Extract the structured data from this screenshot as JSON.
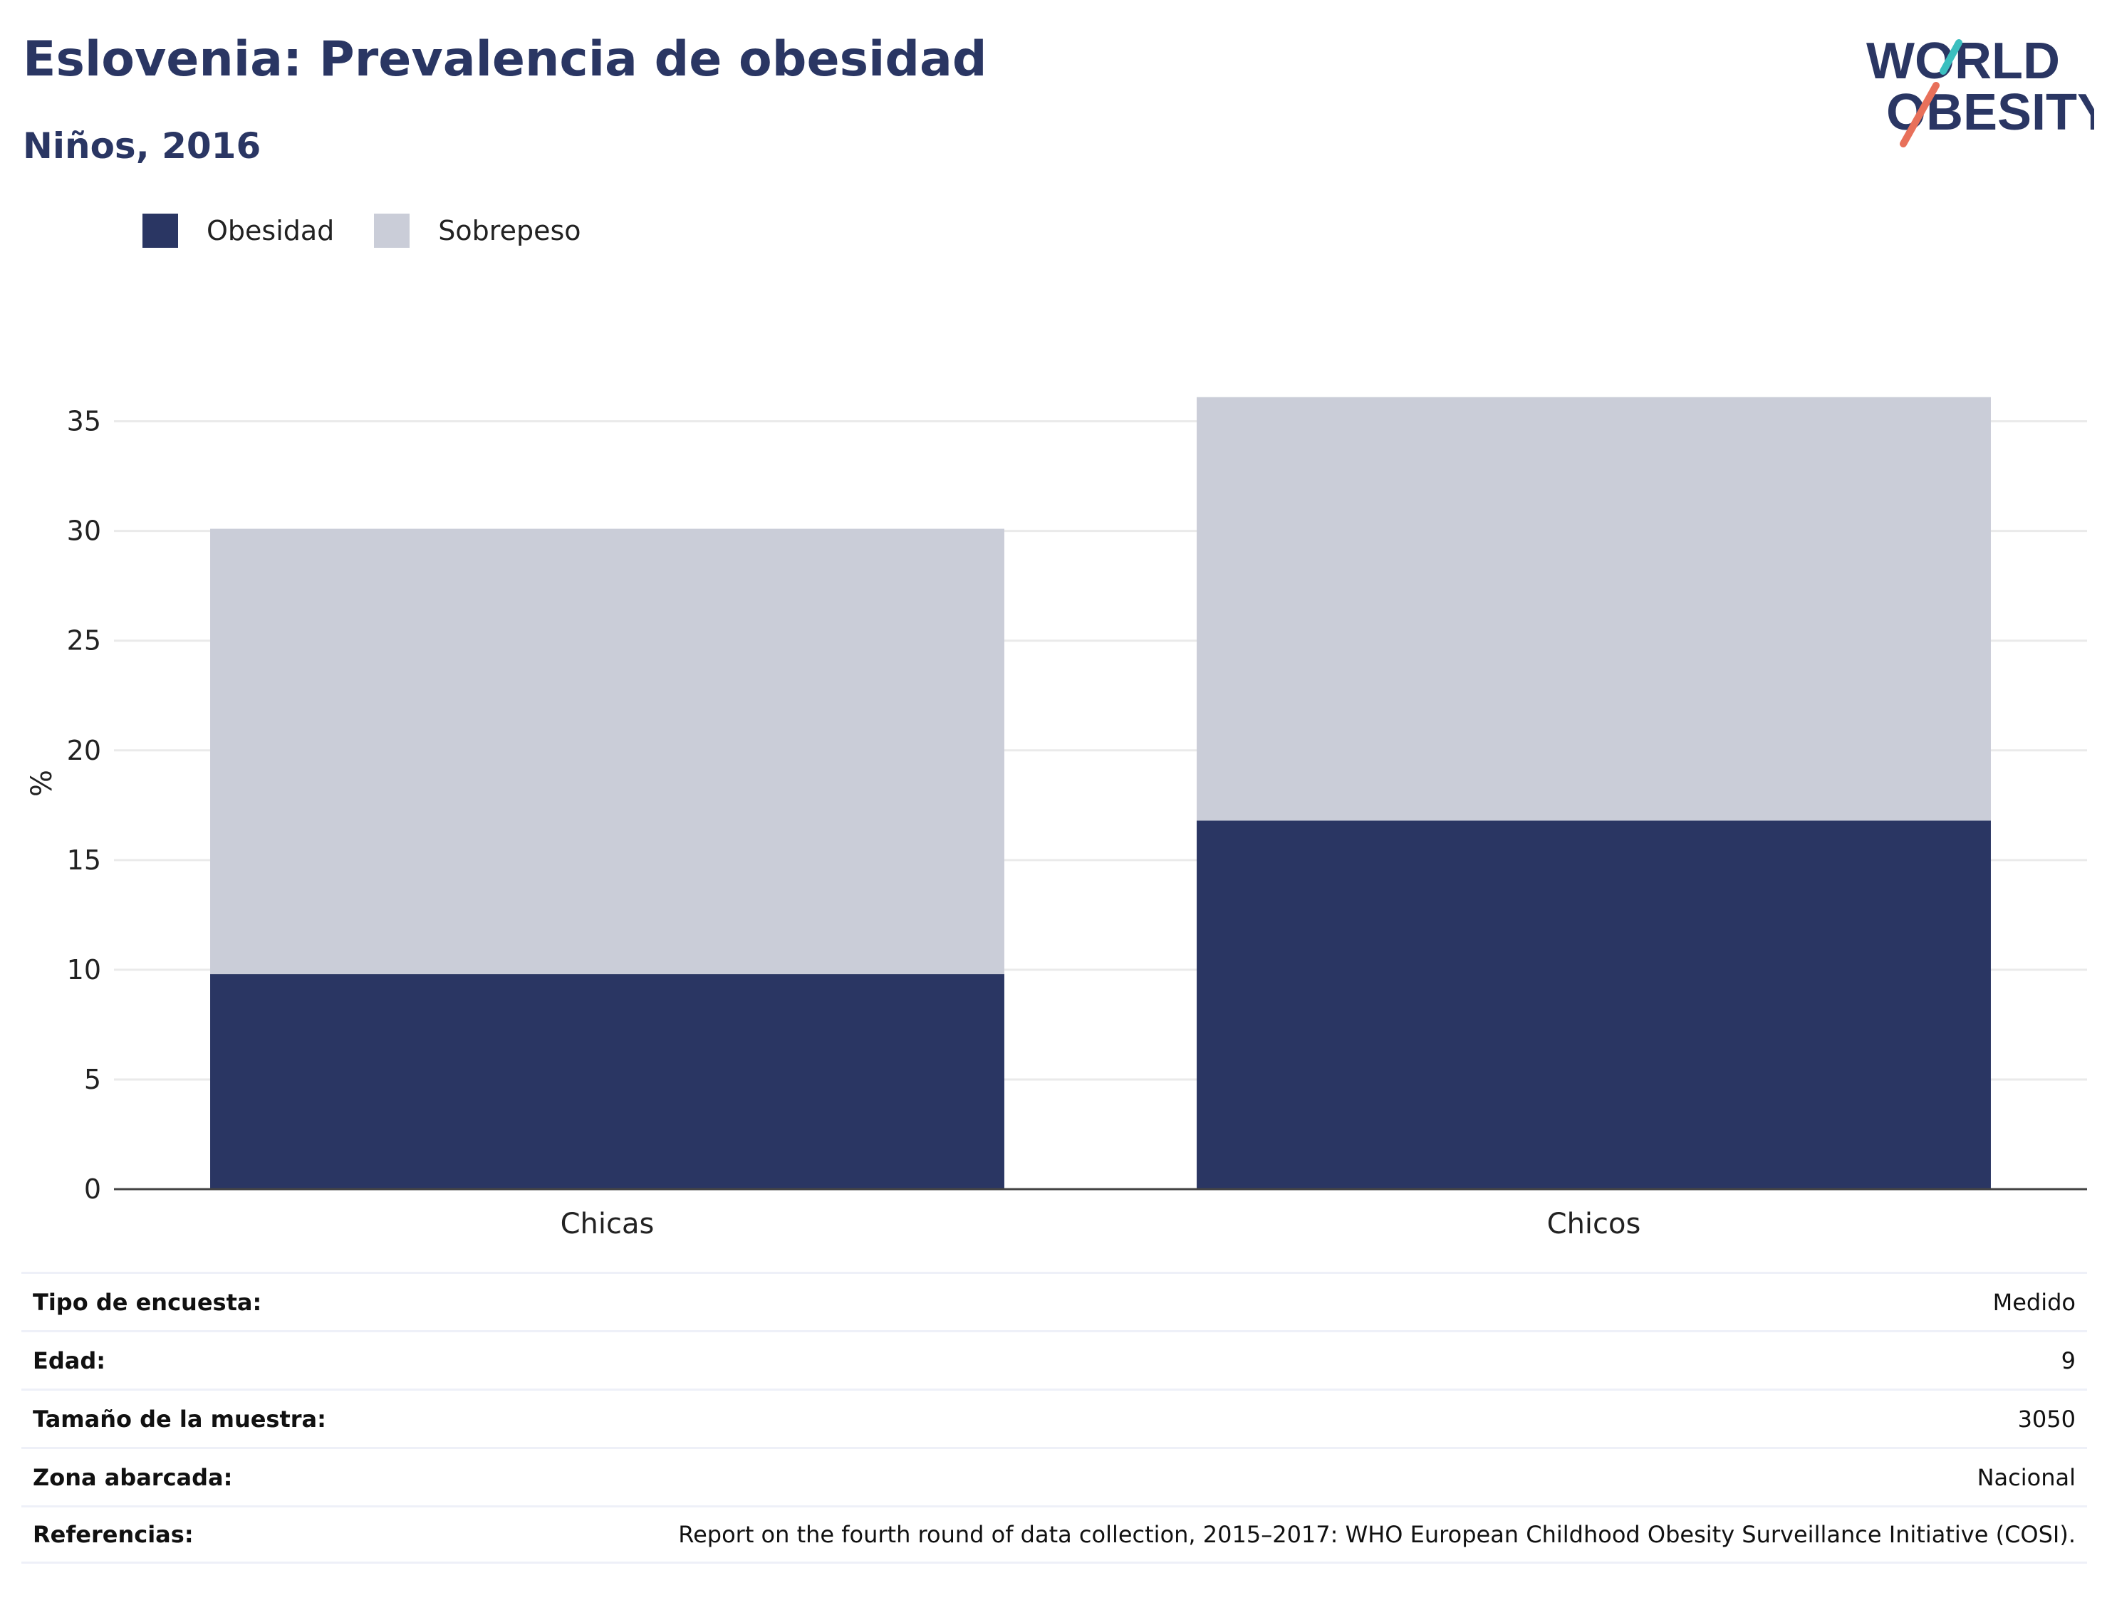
{
  "title": "Eslovenia: Prevalencia de obesidad",
  "subtitle": "Niños, 2016",
  "logo": {
    "line1": "WORLD",
    "line2": "OBESITY",
    "accent_teal": "#3bbfbf",
    "accent_coral": "#e8705a"
  },
  "colors": {
    "obesidad": "#2a3663",
    "sobrepeso": "#cacdd8",
    "text": "#2a3663"
  },
  "chart_data": {
    "type": "bar",
    "stacked": true,
    "categories": [
      "Chicas",
      "Chicos"
    ],
    "series": [
      {
        "name": "Obesidad",
        "values": [
          9.8,
          16.8
        ],
        "color": "#2a3663"
      },
      {
        "name": "Sobrepeso",
        "values": [
          20.3,
          19.3
        ],
        "color": "#cacdd8"
      }
    ],
    "ylabel": "%",
    "ylim": [
      0,
      37
    ],
    "yticks": [
      0,
      5,
      10,
      15,
      20,
      25,
      30,
      35
    ],
    "grid": true,
    "legend_position": "top-left"
  },
  "info": [
    {
      "key": "Tipo de encuesta:",
      "value": "Medido"
    },
    {
      "key": "Edad:",
      "value": "9"
    },
    {
      "key": "Tamaño de la muestra:",
      "value": "3050"
    },
    {
      "key": "Zona abarcada:",
      "value": "Nacional"
    },
    {
      "key": "Referencias:",
      "value": "Report on the fourth round of data collection, 2015–2017: WHO European Childhood Obesity Surveillance Initiative (COSI)."
    }
  ]
}
